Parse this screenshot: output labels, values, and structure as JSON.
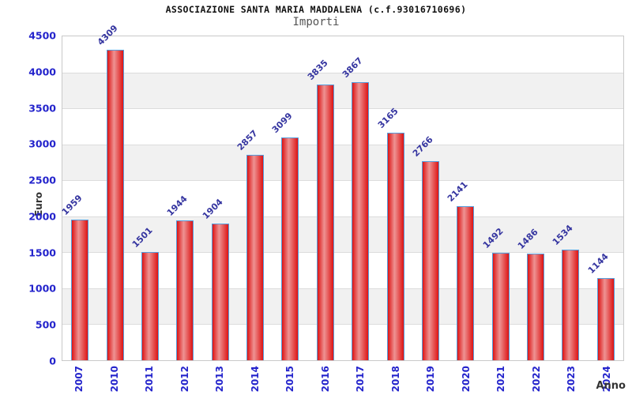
{
  "chart_data": {
    "type": "bar",
    "title": "ASSOCIAZIONE SANTA MARIA MADDALENA (c.f.93016710696)",
    "subtitle": "Importi",
    "xlabel": "Anno",
    "ylabel": "Euro",
    "categories": [
      "2007",
      "2010",
      "2011",
      "2012",
      "2013",
      "2014",
      "2015",
      "2016",
      "2017",
      "2018",
      "2019",
      "2020",
      "2021",
      "2022",
      "2023",
      "2024"
    ],
    "values": [
      1959,
      4309,
      1501,
      1944,
      1904,
      2857,
      3099,
      3835,
      3867,
      3165,
      2766,
      2141,
      1492,
      1486,
      1534,
      1144
    ],
    "ylim": [
      0,
      4500
    ],
    "ytick_step": 500,
    "grid": true,
    "legend": "none",
    "band_colors": [
      "#ffffff",
      "#f1f1f1"
    ],
    "colors": {
      "bar_fill_edge": "#dd1414",
      "bar_fill_center": "#ee9393",
      "bar_border": "#559ddc",
      "axis_tick_label": "#2424cc",
      "value_label": "#3535a0",
      "axis_title": "#333333",
      "gridline": "#dcdcdc",
      "plot_border": "#c9c9c9"
    }
  }
}
